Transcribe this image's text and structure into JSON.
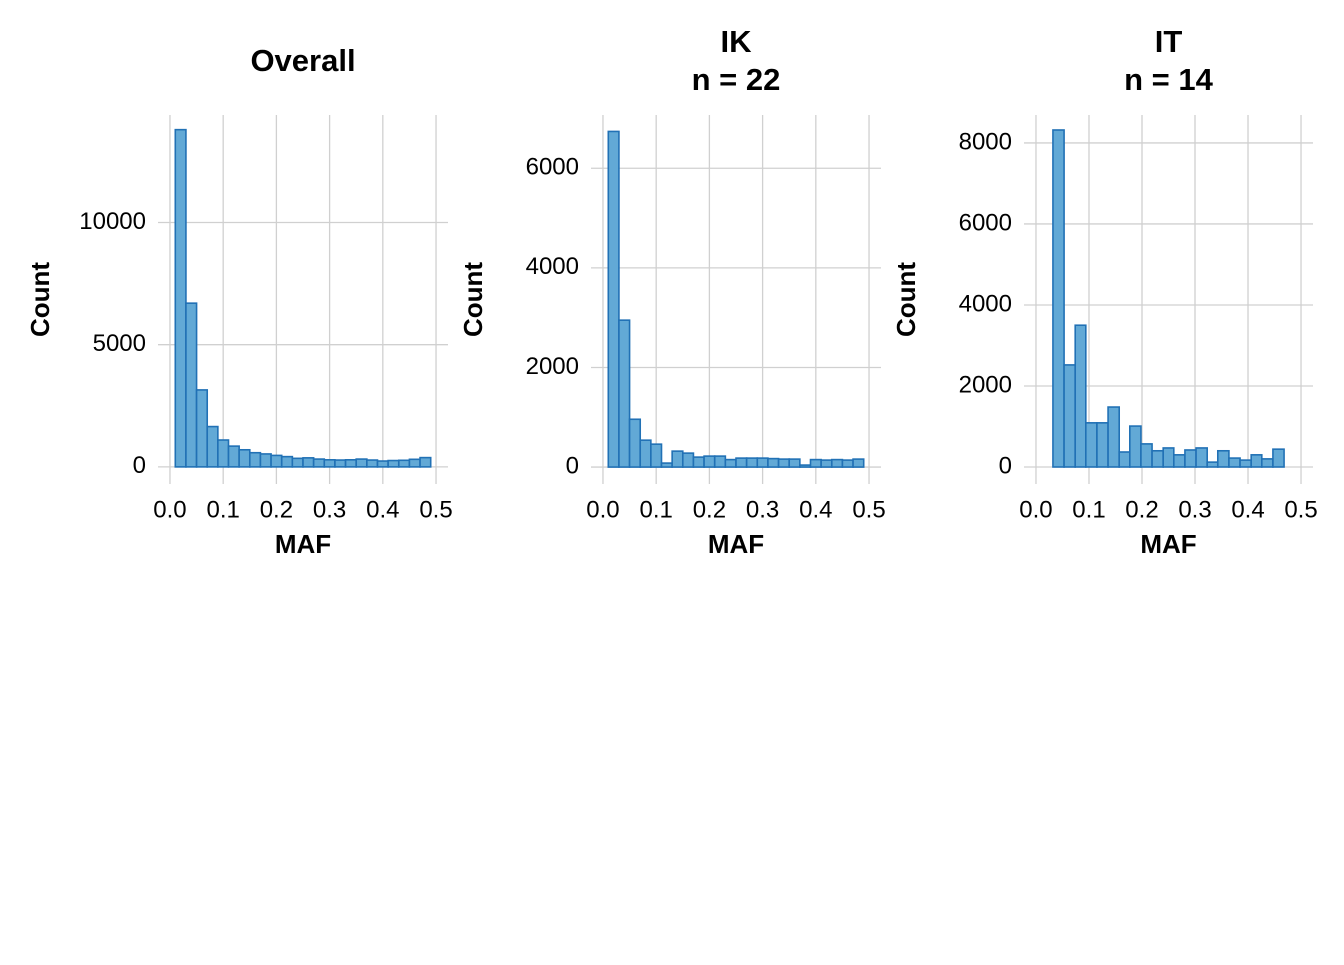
{
  "chart_data": [
    {
      "type": "histogram",
      "title": "Overall",
      "xlabel": "MAF",
      "ylabel": "Count",
      "bins": [
        0.01,
        0.03,
        0.05,
        0.07,
        0.09,
        0.11,
        0.13,
        0.15,
        0.17,
        0.19,
        0.21,
        0.23,
        0.25,
        0.27,
        0.29,
        0.31,
        0.33,
        0.35,
        0.37,
        0.39,
        0.41,
        0.43,
        0.45,
        0.47,
        0.49
      ],
      "values": [
        13800,
        6700,
        3150,
        1650,
        1100,
        850,
        700,
        580,
        530,
        470,
        420,
        350,
        370,
        320,
        290,
        280,
        290,
        320,
        280,
        240,
        260,
        270,
        310,
        380
      ],
      "color": "#62a9d6",
      "edgecolor": "#2171b5",
      "grid": true,
      "xlim": [
        -0.0225,
        0.5225
      ],
      "xticks": [
        {
          "value": 0,
          "label": "0.0"
        },
        0.1,
        0.2,
        0.3,
        0.4,
        0.5
      ],
      "ylim": [
        -700,
        14400
      ],
      "yticks": [
        0,
        5000,
        10000
      ]
    },
    {
      "type": "histogram",
      "title": "IK",
      "subtitle": "n = 22",
      "xlabel": "MAF",
      "ylabel": "Count",
      "bins": [
        0.01,
        0.03,
        0.05,
        0.07,
        0.09,
        0.11,
        0.13,
        0.15,
        0.17,
        0.19,
        0.21,
        0.23,
        0.25,
        0.27,
        0.29,
        0.31,
        0.33,
        0.35,
        0.37,
        0.39,
        0.41,
        0.43,
        0.45,
        0.47,
        0.49
      ],
      "values": [
        6740,
        2950,
        960,
        540,
        460,
        80,
        320,
        280,
        200,
        220,
        220,
        150,
        180,
        180,
        180,
        170,
        160,
        160,
        40,
        150,
        140,
        150,
        140,
        160
      ],
      "color": "#62a9d6",
      "edgecolor": "#2171b5",
      "grid": true,
      "xlim": [
        -0.0225,
        0.5225
      ],
      "xticks": [
        {
          "value": 0,
          "label": "0.0"
        },
        0.1,
        0.2,
        0.3,
        0.4,
        0.5
      ],
      "ylim": [
        -340,
        7070
      ],
      "yticks": [
        0,
        2000,
        4000,
        6000
      ]
    },
    {
      "type": "histogram",
      "title": "IT",
      "subtitle": "n = 14",
      "xlabel": "MAF",
      "ylabel": "Count",
      "bins": [
        0.011,
        0.032,
        0.053,
        0.074,
        0.094,
        0.115,
        0.136,
        0.157,
        0.177,
        0.198,
        0.219,
        0.24,
        0.26,
        0.281,
        0.302,
        0.323,
        0.343,
        0.364,
        0.385,
        0.406,
        0.426,
        0.447,
        0.468,
        0.489
      ],
      "values": [
        0,
        8320,
        2520,
        3500,
        1090,
        1090,
        1480,
        370,
        1010,
        570,
        400,
        470,
        300,
        420,
        470,
        120,
        400,
        220,
        170,
        300,
        200,
        440,
        0
      ],
      "color": "#62a9d6",
      "edgecolor": "#2171b5",
      "grid": true,
      "xlim": [
        -0.0226,
        0.5226
      ],
      "xticks": [
        {
          "value": 0,
          "label": "0.0"
        },
        0.1,
        0.2,
        0.3,
        0.4,
        0.5
      ],
      "ylim": [
        -420,
        8690
      ],
      "yticks": [
        0,
        2000,
        4000,
        6000,
        8000
      ]
    }
  ]
}
